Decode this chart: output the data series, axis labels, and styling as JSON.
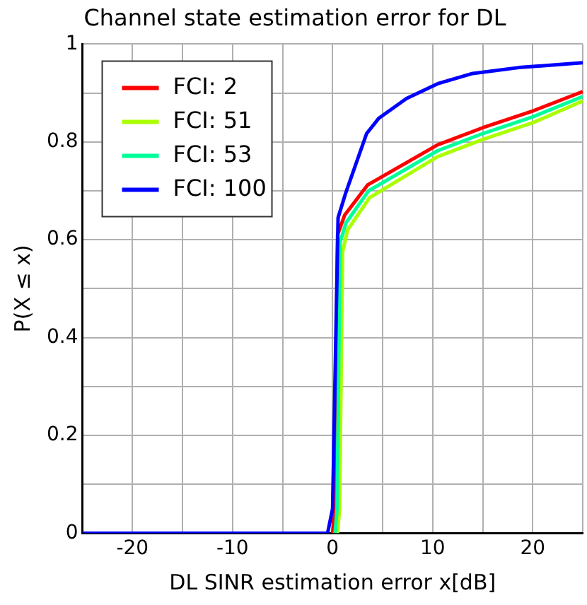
{
  "chart_data": {
    "type": "line",
    "title": "Channel state estimation error for DL",
    "xlabel": "DL SINR estimation error x[dB]",
    "ylabel": "P(X ≤ x)",
    "xlim": [
      -25,
      25
    ],
    "ylim": [
      0,
      1
    ],
    "xticks": [
      {
        "value": -25,
        "label": null
      },
      -20,
      {
        "value": -15,
        "label": null
      },
      -10,
      {
        "value": -5,
        "label": null
      },
      0,
      {
        "value": 5,
        "label": null
      },
      10,
      {
        "value": 15,
        "label": null
      },
      20,
      {
        "value": 25,
        "label": null
      }
    ],
    "yticks": [
      0,
      {
        "value": 0.1,
        "label": null
      },
      0.2,
      {
        "value": 0.3,
        "label": null
      },
      0.4,
      {
        "value": 0.5,
        "label": null
      },
      0.6,
      {
        "value": 0.7,
        "label": null
      },
      0.8,
      {
        "value": 0.9,
        "label": null
      },
      1
    ],
    "grid": true,
    "legend": "top left",
    "marker": "none",
    "line_style": "solid",
    "series": [
      {
        "name": "FCI: 2",
        "color": "#ff0000",
        "x": [
          0,
          0.2,
          0.5,
          1.2,
          3.5,
          10.5,
          15,
          20.1,
          25
        ],
        "values": [
          0,
          0.05,
          0.61,
          0.65,
          0.712,
          0.794,
          0.829,
          0.864,
          0.903
        ]
      },
      {
        "name": "FCI: 51",
        "color": "#aaff00",
        "x": [
          0.5,
          0.7,
          1.0,
          1.5,
          3.7,
          10.5,
          15,
          20.1,
          25
        ],
        "values": [
          0,
          0.05,
          0.575,
          0.62,
          0.686,
          0.77,
          0.805,
          0.84,
          0.884
        ]
      },
      {
        "name": "FCI: 53",
        "color": "#00ff99",
        "x": [
          0.25,
          0.45,
          0.75,
          1.35,
          3.6,
          10.5,
          15,
          20.1,
          25
        ],
        "values": [
          0,
          0.05,
          0.595,
          0.635,
          0.7,
          0.782,
          0.817,
          0.852,
          0.893
        ]
      },
      {
        "name": "FCI: 100",
        "color": "#0000ff",
        "x": [
          -25,
          -0.5,
          0,
          0.55,
          1.3,
          3.4,
          4.6,
          7.4,
          10.5,
          14,
          18.6,
          25
        ],
        "values": [
          0,
          0,
          0.05,
          0.645,
          0.695,
          0.817,
          0.848,
          0.889,
          0.919,
          0.94,
          0.952,
          0.962
        ]
      }
    ]
  }
}
